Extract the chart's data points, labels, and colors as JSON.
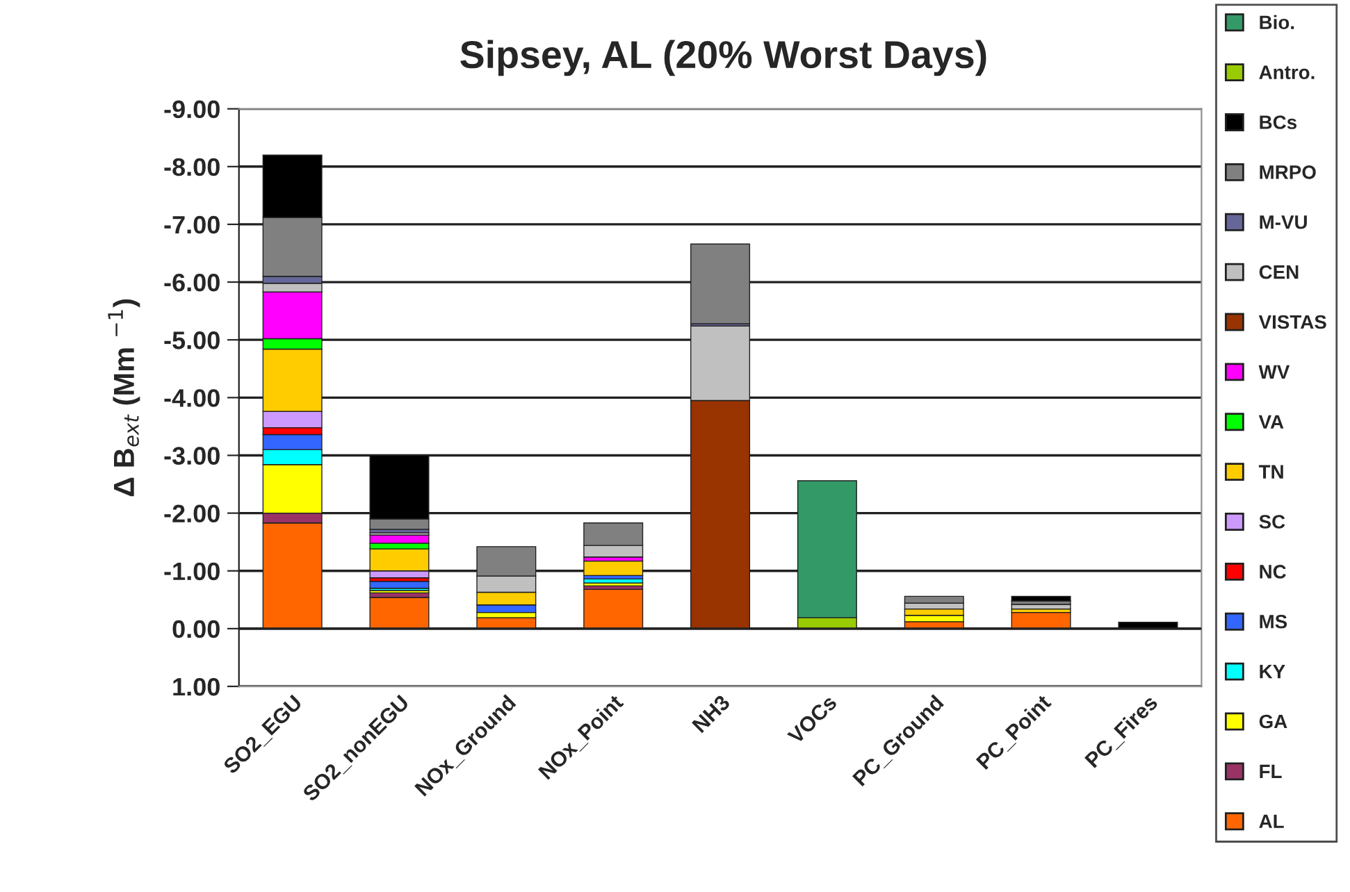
{
  "chart_data": {
    "type": "bar",
    "stacked": true,
    "title": "Sipsey, AL (20% Worst Days)",
    "ylabel": "Δ B$_{ext}$ (Mm $^{−1}$)",
    "categories": [
      "SO2_EGU",
      "SO2_nonEGU",
      "NOx_Ground",
      "NOx_Point",
      "NH3",
      "VOCs",
      "PC_Ground",
      "PC_Point",
      "PC_Fires"
    ],
    "series": [
      {
        "name": "AL",
        "color": "#ff6600",
        "values": [
          -1.83,
          -0.54,
          -0.19,
          -0.68,
          null,
          null,
          -0.12,
          -0.28,
          null
        ]
      },
      {
        "name": "FL",
        "color": "#993366",
        "values": [
          -0.17,
          -0.08,
          null,
          -0.06,
          null,
          null,
          null,
          null,
          null
        ]
      },
      {
        "name": "GA",
        "color": "#ffff00",
        "values": [
          -0.84,
          -0.04,
          -0.09,
          -0.05,
          null,
          null,
          -0.11,
          null,
          null
        ]
      },
      {
        "name": "KY",
        "color": "#00ffff",
        "values": [
          -0.26,
          -0.04,
          null,
          -0.07,
          null,
          null,
          null,
          null,
          null
        ]
      },
      {
        "name": "MS",
        "color": "#3366ff",
        "values": [
          -0.26,
          -0.12,
          -0.13,
          -0.06,
          null,
          null,
          null,
          null,
          null
        ]
      },
      {
        "name": "NC",
        "color": "#ff0000",
        "values": [
          -0.12,
          -0.06,
          null,
          null,
          null,
          null,
          null,
          null,
          null
        ]
      },
      {
        "name": "SC",
        "color": "#cc99ff",
        "values": [
          -0.28,
          -0.12,
          null,
          null,
          null,
          null,
          null,
          null,
          null
        ]
      },
      {
        "name": "TN",
        "color": "#ffcc00",
        "values": [
          -1.08,
          -0.38,
          -0.22,
          -0.25,
          null,
          null,
          -0.11,
          -0.06,
          null
        ]
      },
      {
        "name": "VA",
        "color": "#00ff00",
        "values": [
          -0.18,
          -0.1,
          null,
          null,
          null,
          null,
          null,
          null,
          null
        ]
      },
      {
        "name": "WV",
        "color": "#ff00ff",
        "values": [
          -0.81,
          -0.14,
          null,
          -0.07,
          null,
          null,
          null,
          null,
          null
        ]
      },
      {
        "name": "VISTAS",
        "color": "#993300",
        "values": [
          null,
          null,
          null,
          null,
          -3.95,
          null,
          null,
          null,
          null
        ]
      },
      {
        "name": "CEN",
        "color": "#c0c0c0",
        "values": [
          -0.15,
          -0.04,
          -0.28,
          -0.2,
          -1.29,
          null,
          -0.1,
          -0.08,
          null
        ]
      },
      {
        "name": "M-VU",
        "color": "#666699",
        "values": [
          -0.12,
          -0.06,
          null,
          null,
          -0.04,
          null,
          null,
          null,
          null
        ]
      },
      {
        "name": "MRPO",
        "color": "#808080",
        "values": [
          -1.02,
          -0.18,
          -0.51,
          -0.39,
          -1.38,
          null,
          -0.12,
          -0.06,
          null
        ]
      },
      {
        "name": "BCs",
        "color": "#000000",
        "values": [
          -1.08,
          -1.1,
          null,
          null,
          null,
          null,
          null,
          -0.08,
          -0.11
        ]
      },
      {
        "name": "Antro.",
        "color": "#99cc00",
        "values": [
          null,
          null,
          null,
          null,
          null,
          -0.19,
          null,
          null,
          null
        ]
      },
      {
        "name": "Bio.",
        "color": "#339966",
        "values": [
          null,
          null,
          null,
          null,
          null,
          -2.37,
          null,
          null,
          null
        ]
      }
    ],
    "ylim": [
      1,
      -9
    ],
    "yticks": [
      {
        "value": -9,
        "label": "-9.00"
      },
      {
        "value": -8,
        "label": "-8.00"
      },
      {
        "value": -7,
        "label": "-7.00"
      },
      {
        "value": -6,
        "label": "-6.00"
      },
      {
        "value": -5,
        "label": "-5.00"
      },
      {
        "value": -4,
        "label": "-4.00"
      },
      {
        "value": -3,
        "label": "-3.00"
      },
      {
        "value": -2,
        "label": "-2.00"
      },
      {
        "value": -1,
        "label": "-1.00"
      },
      {
        "value": 0,
        "label": "0.00"
      },
      {
        "value": 1,
        "label": "1.00"
      }
    ],
    "grid": "y",
    "legend": "right"
  }
}
